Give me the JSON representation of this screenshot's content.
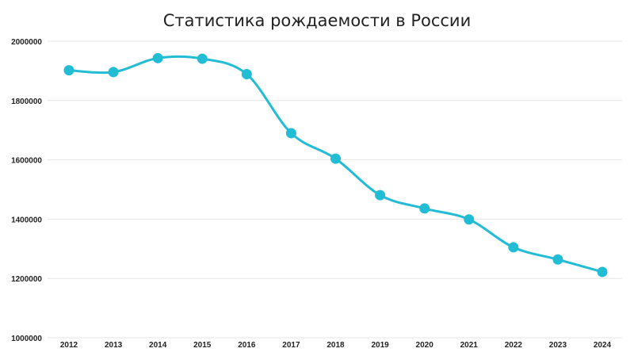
{
  "chart_data": {
    "type": "line",
    "title": "Статистика рождаемости в России",
    "xlabel": "",
    "ylabel": "",
    "x": [
      "2012",
      "2013",
      "2014",
      "2015",
      "2016",
      "2017",
      "2018",
      "2019",
      "2020",
      "2021",
      "2022",
      "2023",
      "2024"
    ],
    "series": [
      {
        "values": [
          1902000,
          1896000,
          1943000,
          1941000,
          1889000,
          1690000,
          1604000,
          1481000,
          1436000,
          1399000,
          1305000,
          1264000,
          1222000
        ]
      }
    ],
    "ylim": [
      1000000,
      2000000
    ],
    "yticks": [
      "1000000",
      "1200000",
      "1400000",
      "1600000",
      "1800000",
      "2000000"
    ],
    "grid": true,
    "legend": "none",
    "line_color": "#22bcd4",
    "marker_color": "#22bcd4",
    "grid_color": "#e6e6e6"
  }
}
